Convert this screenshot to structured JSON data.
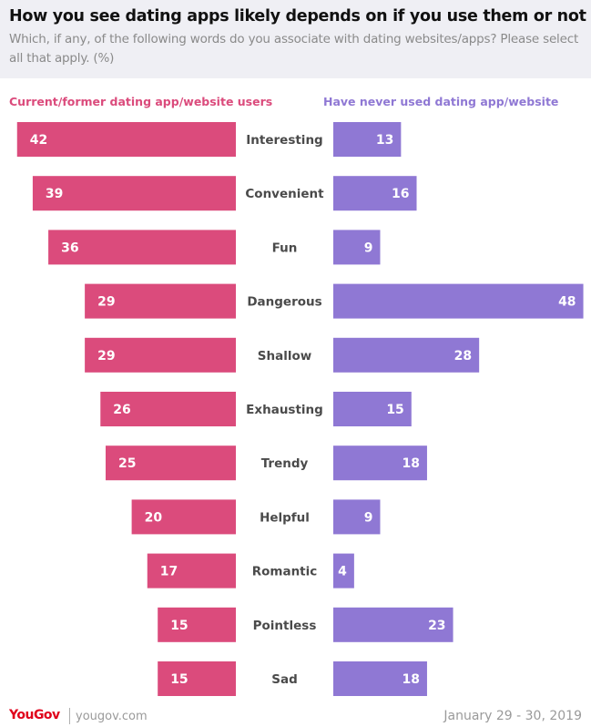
{
  "header": {
    "title": "How you see dating apps likely depends on if you use them or not",
    "subtitle": "Which, if any, of the following words do you associate with dating websites/apps? Please select all that apply. (%)"
  },
  "colors": {
    "left_series": "#db4b7c",
    "right_series": "#8f78d4",
    "category_label": "#4a4a4a",
    "value_label": "#ffffff"
  },
  "chart_data": {
    "type": "bar",
    "orientation": "horizontal-diverging",
    "title": "How you see dating apps likely depends on if you use them or not",
    "subtitle": "Which, if any, of the following words do you associate with dating websites/apps? Please select all that apply. (%)",
    "categories": [
      "Interesting",
      "Convenient",
      "Fun",
      "Dangerous",
      "Shallow",
      "Exhausting",
      "Trendy",
      "Helpful",
      "Romantic",
      "Pointless",
      "Sad"
    ],
    "series": [
      {
        "name": "Current/former dating app/website users",
        "side": "left",
        "values": [
          42,
          39,
          36,
          29,
          29,
          26,
          25,
          20,
          17,
          15,
          15
        ]
      },
      {
        "name": "Have never used dating app/website",
        "side": "right",
        "values": [
          13,
          16,
          9,
          48,
          28,
          15,
          18,
          9,
          4,
          23,
          18
        ]
      }
    ],
    "xlabel": "",
    "ylabel": "",
    "xlim": [
      0,
      48
    ],
    "grid": false,
    "legend": "top",
    "data_labels": true
  },
  "footer": {
    "brand_you": "You",
    "brand_gov": "Gov",
    "url": "yougov.com",
    "date": "January 29 - 30, 2019"
  }
}
